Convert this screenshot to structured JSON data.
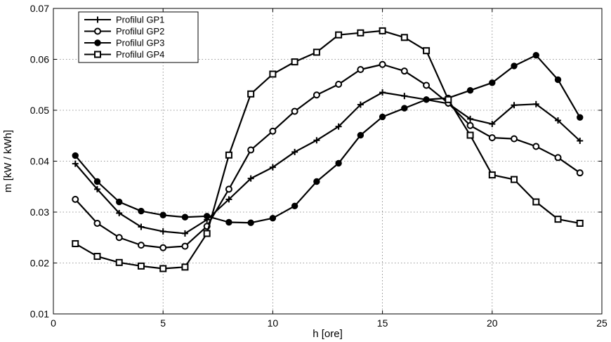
{
  "chart_data": {
    "type": "line",
    "xlabel": "h [ore]",
    "ylabel": "m [kW / kWh]",
    "xlim": [
      0,
      25
    ],
    "ylim": [
      0.01,
      0.07
    ],
    "xticks": [
      0,
      5,
      10,
      15,
      20,
      25
    ],
    "yticks": [
      0.01,
      0.02,
      0.03,
      0.04,
      0.05,
      0.06,
      0.07
    ],
    "xtick_labels": [
      "0",
      "5",
      "10",
      "15",
      "20",
      "25"
    ],
    "ytick_labels": [
      "0.01",
      "0.02",
      "0.03",
      "0.04",
      "0.05",
      "0.06",
      "0.07"
    ],
    "grid": true,
    "legend_position": "top-left",
    "x": [
      1,
      2,
      3,
      4,
      5,
      6,
      7,
      8,
      9,
      10,
      11,
      12,
      13,
      14,
      15,
      16,
      17,
      18,
      19,
      20,
      21,
      22,
      23,
      24
    ],
    "series": [
      {
        "name": "Profilul GP1",
        "marker": "plus",
        "color": "#000000",
        "values": [
          0.0395,
          0.0345,
          0.0298,
          0.0271,
          0.0262,
          0.0258,
          0.0285,
          0.0325,
          0.0366,
          0.0388,
          0.0418,
          0.0441,
          0.0468,
          0.0511,
          0.0535,
          0.0528,
          0.0521,
          0.0513,
          0.0483,
          0.0473,
          0.051,
          0.0512,
          0.048,
          0.044
        ]
      },
      {
        "name": "Profilul GP2",
        "marker": "open-circle",
        "color": "#000000",
        "values": [
          0.0325,
          0.0278,
          0.025,
          0.0235,
          0.023,
          0.0233,
          0.0272,
          0.0345,
          0.0422,
          0.0459,
          0.0498,
          0.053,
          0.0551,
          0.058,
          0.059,
          0.0577,
          0.0549,
          0.0514,
          0.047,
          0.0446,
          0.0444,
          0.0429,
          0.0407,
          0.0377
        ]
      },
      {
        "name": "Profilul GP3",
        "marker": "filled-circle",
        "color": "#000000",
        "values": [
          0.0411,
          0.036,
          0.032,
          0.0302,
          0.0294,
          0.029,
          0.0292,
          0.028,
          0.0279,
          0.0288,
          0.0312,
          0.036,
          0.0396,
          0.0451,
          0.0487,
          0.0504,
          0.0521,
          0.0524,
          0.0539,
          0.0554,
          0.0587,
          0.0608,
          0.056,
          0.0486
        ]
      },
      {
        "name": "Profilul GP4",
        "marker": "open-square",
        "color": "#000000",
        "values": [
          0.0238,
          0.0213,
          0.0201,
          0.0194,
          0.0189,
          0.0192,
          0.0258,
          0.0412,
          0.0532,
          0.0571,
          0.0595,
          0.0614,
          0.0648,
          0.0652,
          0.0656,
          0.0643,
          0.0617,
          0.0521,
          0.0451,
          0.0373,
          0.0364,
          0.032,
          0.0286,
          0.0278
        ]
      }
    ]
  }
}
